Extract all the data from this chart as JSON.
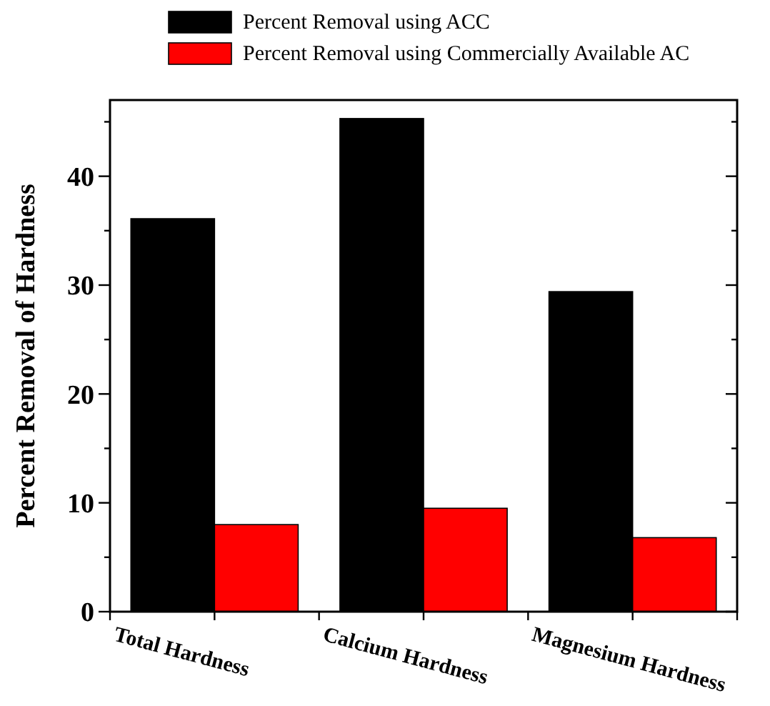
{
  "chart_data": {
    "type": "bar",
    "ylabel": "Percent Removal of Hardness",
    "categories": [
      "Total Hardness",
      "Calcium Hardness",
      "Magnesium Hardness"
    ],
    "series": [
      {
        "name": "Percent Removal using ACC",
        "color": "#000000",
        "values": [
          36.1,
          45.3,
          29.4
        ]
      },
      {
        "name": "Percent Removal using Commercially Available AC",
        "color": "#ff0000",
        "values": [
          8.0,
          9.5,
          6.8
        ]
      }
    ],
    "ylim": [
      0,
      47
    ],
    "yticks": [
      0,
      {
        "value": 5,
        "label": null
      },
      10,
      {
        "value": 15,
        "label": null
      },
      20,
      {
        "value": 25,
        "label": null
      },
      30,
      {
        "value": 35,
        "label": null
      },
      40,
      {
        "value": 45,
        "label": null
      }
    ],
    "legend": "top",
    "grid": false
  }
}
